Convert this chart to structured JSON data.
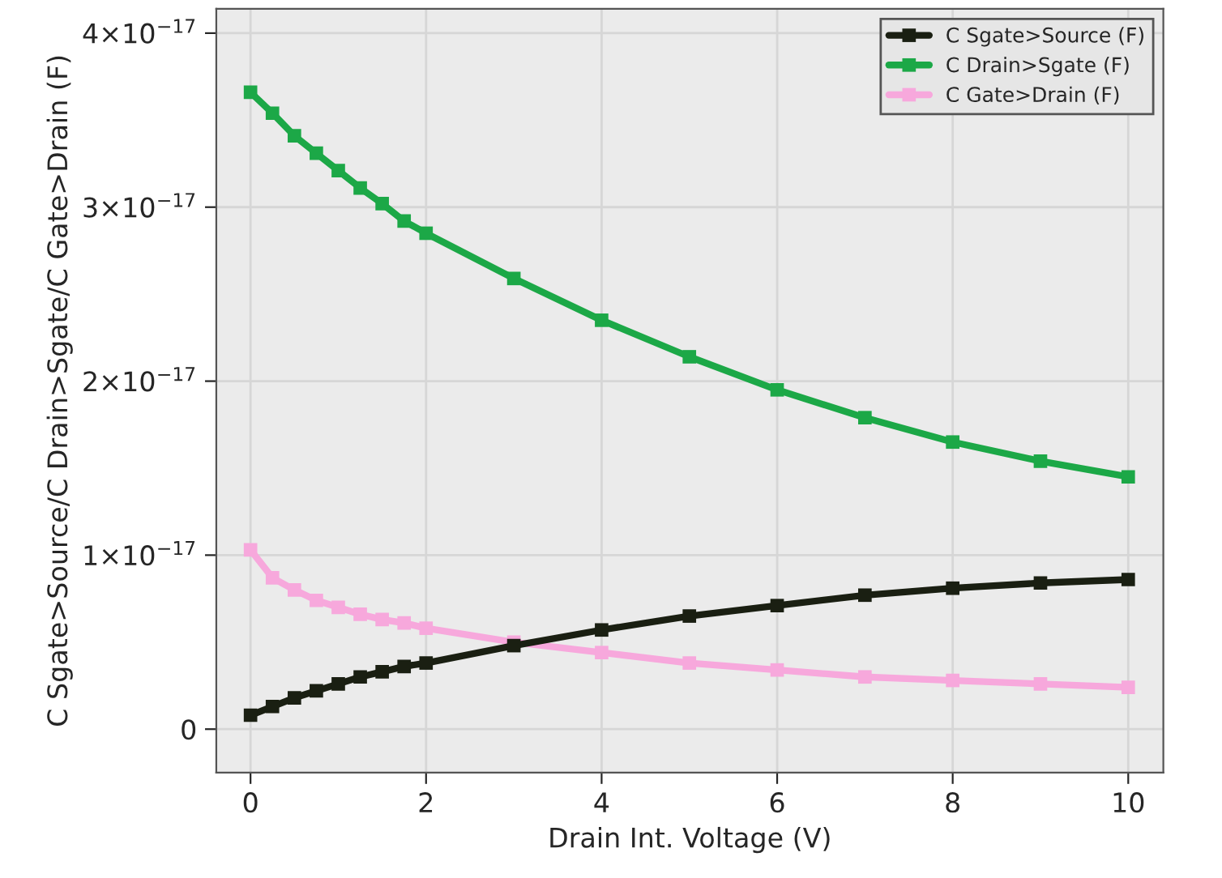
{
  "chart_data": {
    "type": "line",
    "xlabel": "Drain Int. Voltage (V)",
    "ylabel": "C Sgate>Source/C Drain>Sgate/C Gate>Drain (F)",
    "x": [
      0,
      0.25,
      0.5,
      0.75,
      1,
      1.25,
      1.5,
      1.75,
      2,
      3,
      4,
      5,
      6,
      7,
      8,
      9,
      10
    ],
    "series": [
      {
        "name": "C Sgate>Source (F)",
        "color": "#1a1f12",
        "values": [
          8e-19,
          1.3e-18,
          1.8e-18,
          2.2e-18,
          2.6e-18,
          3e-18,
          3.3e-18,
          3.6e-18,
          3.8e-18,
          4.8e-18,
          5.7e-18,
          6.5e-18,
          7.1e-18,
          7.7e-18,
          8.1e-18,
          8.4e-18,
          8.6e-18
        ]
      },
      {
        "name": "C Drain>Sgate (F)",
        "color": "#1ca847",
        "values": [
          3.66e-17,
          3.54e-17,
          3.41e-17,
          3.31e-17,
          3.21e-17,
          3.11e-17,
          3.02e-17,
          2.92e-17,
          2.85e-17,
          2.59e-17,
          2.35e-17,
          2.14e-17,
          1.95e-17,
          1.79e-17,
          1.65e-17,
          1.54e-17,
          1.45e-17
        ]
      },
      {
        "name": "C Gate>Drain (F)",
        "color": "#f7a8dc",
        "values": [
          1.03e-17,
          8.7e-18,
          8e-18,
          7.4e-18,
          7e-18,
          6.6e-18,
          6.3e-18,
          6.1e-18,
          5.8e-18,
          5e-18,
          4.4e-18,
          3.8e-18,
          3.4e-18,
          3e-18,
          2.8e-18,
          2.6e-18,
          2.4e-18
        ]
      }
    ],
    "xlim": [
      -0.39,
      10.4
    ],
    "xticks": [
      0,
      2,
      4,
      6,
      8,
      10
    ],
    "ylim": [
      -2.5e-18,
      4.14e-17
    ],
    "yticks": [
      0,
      {
        "value": 1e-17,
        "label": "1×10$^{−17}$"
      },
      {
        "value": 2e-17,
        "label": "2×10$^{−17}$"
      },
      {
        "value": 3e-17,
        "label": "3×10$^{−17}$"
      },
      {
        "value": 4e-17,
        "label": "4×10$^{−17}$"
      }
    ],
    "grid": true,
    "legend": "top right",
    "marker": "square",
    "line_style": "solid"
  }
}
